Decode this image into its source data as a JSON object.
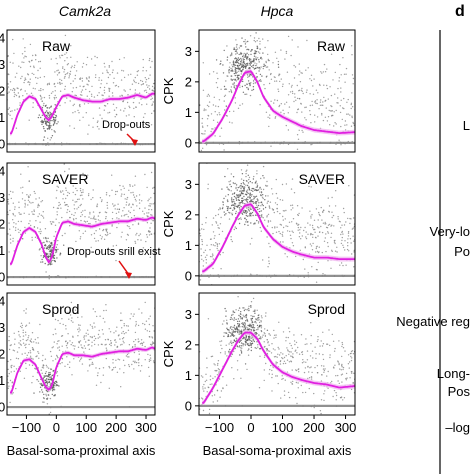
{
  "figure": {
    "panel_letter": "d",
    "right_labels": [
      "L",
      "Very-lo",
      "Po",
      "Negative reg",
      "Long-",
      "Pos",
      "–log"
    ],
    "colors": {
      "fit": "#e020e0",
      "fit_ribbon": "#f2b8f2",
      "points": "#808080",
      "dropout": "#909090",
      "arrow": "#e01010",
      "frame": "#000000"
    }
  },
  "chart_data": [
    {
      "type": "scatter",
      "gene": "Camk2a",
      "method": "Raw",
      "title": "Camk2a",
      "ylabel": "",
      "xlabel": "",
      "xlim": [
        -165,
        330
      ],
      "ylim": [
        -0.3,
        4.3
      ],
      "yticks": [
        0,
        1,
        2,
        3,
        4
      ],
      "xticks": [],
      "annotation": "Drop-outs",
      "curve": {
        "x": [
          -150,
          -130,
          -110,
          -90,
          -70,
          -50,
          -35,
          -25,
          -15,
          0,
          20,
          40,
          60,
          90,
          120,
          150,
          180,
          210,
          240,
          270,
          300,
          320,
          330
        ],
        "y": [
          0.4,
          1.1,
          1.6,
          1.8,
          1.7,
          1.3,
          1.0,
          0.9,
          1.05,
          1.4,
          1.8,
          1.85,
          1.75,
          1.65,
          1.6,
          1.6,
          1.7,
          1.7,
          1.75,
          1.85,
          1.75,
          1.9,
          1.9
        ]
      },
      "scatter_profile": {
        "base": [
          2.0,
          1.9,
          2.5,
          2.6,
          2.4,
          2.0,
          1.5,
          1.0,
          1.5,
          2.2,
          2.6,
          2.5,
          2.2,
          2.0,
          1.9,
          1.9,
          2.0,
          2.0,
          2.0,
          2.1,
          2.0,
          2.1,
          2.1
        ],
        "spread": 1.2
      },
      "dropout_fraction": 0.3
    },
    {
      "type": "scatter",
      "gene": "Hpca",
      "method": "Raw",
      "title": "Hpca",
      "ylabel": "CPK",
      "xlabel": "",
      "xlim": [
        -165,
        330
      ],
      "ylim": [
        -0.3,
        3.7
      ],
      "yticks": [
        0,
        1,
        2,
        3
      ],
      "xticks": [],
      "annotation": "",
      "curve": {
        "x": [
          -150,
          -120,
          -90,
          -60,
          -40,
          -20,
          0,
          20,
          40,
          70,
          100,
          130,
          160,
          200,
          240,
          280,
          330
        ],
        "y": [
          0.05,
          0.3,
          0.8,
          1.4,
          1.9,
          2.3,
          2.35,
          2.0,
          1.5,
          1.05,
          0.85,
          0.7,
          0.55,
          0.42,
          0.37,
          0.32,
          0.35
        ]
      },
      "scatter_profile": {
        "base": [
          0.6,
          0.8,
          1.4,
          2.0,
          2.4,
          2.7,
          2.8,
          2.6,
          2.2,
          1.8,
          1.6,
          1.5,
          1.4,
          1.3,
          1.3,
          1.3,
          1.3
        ],
        "spread": 1.3
      },
      "dropout_fraction": 0.25
    },
    {
      "type": "scatter",
      "gene": "Camk2a",
      "method": "SAVER",
      "title": "",
      "ylabel": "",
      "xlabel": "",
      "xlim": [
        -165,
        330
      ],
      "ylim": [
        -0.3,
        4.3
      ],
      "yticks": [
        0,
        1,
        2,
        3,
        4
      ],
      "xticks": [],
      "annotation": "Drop-outs srill exist",
      "curve": {
        "x": [
          -150,
          -130,
          -110,
          -90,
          -70,
          -50,
          -35,
          -25,
          -15,
          0,
          20,
          40,
          60,
          90,
          120,
          150,
          180,
          210,
          240,
          270,
          300,
          320,
          330
        ],
        "y": [
          0.5,
          1.2,
          1.7,
          1.85,
          1.7,
          1.25,
          0.75,
          0.55,
          0.75,
          1.5,
          2.05,
          2.1,
          2.0,
          1.95,
          1.9,
          2.0,
          2.05,
          2.1,
          2.1,
          2.2,
          2.15,
          2.25,
          2.2
        ]
      },
      "scatter_profile": {
        "base": [
          2.2,
          2.2,
          2.6,
          2.6,
          2.4,
          2.0,
          1.4,
          0.8,
          1.4,
          2.3,
          2.7,
          2.7,
          2.5,
          2.4,
          2.3,
          2.4,
          2.4,
          2.4,
          2.4,
          2.5,
          2.4,
          2.5,
          2.5
        ],
        "spread": 1.1
      },
      "dropout_fraction": 0.25
    },
    {
      "type": "scatter",
      "gene": "Hpca",
      "method": "SAVER",
      "title": "",
      "ylabel": "CPK",
      "xlabel": "",
      "xlim": [
        -165,
        330
      ],
      "ylim": [
        -0.3,
        3.7
      ],
      "yticks": [
        0,
        1,
        2,
        3
      ],
      "xticks": [],
      "annotation": "",
      "curve": {
        "x": [
          -150,
          -120,
          -90,
          -60,
          -40,
          -20,
          0,
          20,
          40,
          70,
          100,
          130,
          160,
          200,
          240,
          280,
          330
        ],
        "y": [
          0.15,
          0.4,
          0.95,
          1.6,
          2.0,
          2.3,
          2.35,
          2.05,
          1.6,
          1.2,
          0.95,
          0.8,
          0.7,
          0.6,
          0.6,
          0.55,
          0.55
        ]
      },
      "scatter_profile": {
        "base": [
          0.8,
          1.0,
          1.5,
          2.1,
          2.5,
          2.8,
          2.9,
          2.6,
          2.3,
          1.9,
          1.7,
          1.6,
          1.5,
          1.4,
          1.4,
          1.4,
          1.4
        ],
        "spread": 1.2
      },
      "dropout_fraction": 0.22
    },
    {
      "type": "scatter",
      "gene": "Camk2a",
      "method": "Sprod",
      "title": "",
      "ylabel": "",
      "xlabel": "Basal-soma-proximal axis",
      "xlim": [
        -165,
        330
      ],
      "ylim": [
        -0.3,
        4.3
      ],
      "yticks": [
        0,
        1,
        2,
        3,
        4
      ],
      "xticks": [
        -100,
        0,
        100,
        200,
        300
      ],
      "annotation": "",
      "curve": {
        "x": [
          -150,
          -130,
          -110,
          -90,
          -70,
          -50,
          -35,
          -25,
          -15,
          0,
          20,
          40,
          60,
          90,
          120,
          150,
          180,
          210,
          240,
          270,
          300,
          320,
          330
        ],
        "y": [
          0.55,
          1.3,
          1.75,
          1.8,
          1.6,
          1.1,
          0.75,
          0.65,
          0.8,
          1.5,
          2.0,
          2.05,
          1.95,
          1.95,
          1.9,
          2.0,
          2.05,
          2.1,
          2.1,
          2.2,
          2.15,
          2.25,
          2.2
        ]
      },
      "scatter_profile": {
        "base": [
          1.6,
          1.9,
          2.3,
          2.3,
          2.1,
          1.6,
          1.0,
          0.7,
          1.2,
          2.0,
          2.4,
          2.4,
          2.3,
          2.2,
          2.2,
          2.3,
          2.3,
          2.3,
          2.3,
          2.4,
          2.3,
          2.4,
          2.4
        ],
        "spread": 1.2
      },
      "dropout_fraction": 0.02
    },
    {
      "type": "scatter",
      "gene": "Hpca",
      "method": "Sprod",
      "title": "",
      "ylabel": "CPK",
      "xlabel": "Basal-soma-proximal axis",
      "xlim": [
        -165,
        330
      ],
      "ylim": [
        -0.3,
        3.7
      ],
      "yticks": [
        0,
        1,
        2,
        3
      ],
      "xticks": [
        -100,
        0,
        100,
        200,
        300
      ],
      "annotation": "",
      "curve": {
        "x": [
          -150,
          -120,
          -90,
          -60,
          -40,
          -20,
          0,
          20,
          40,
          70,
          100,
          130,
          160,
          200,
          240,
          280,
          330
        ],
        "y": [
          0.1,
          0.6,
          1.2,
          1.8,
          2.15,
          2.4,
          2.4,
          2.2,
          1.8,
          1.35,
          1.1,
          0.95,
          0.85,
          0.75,
          0.7,
          0.6,
          0.65
        ]
      },
      "scatter_profile": {
        "base": [
          0.5,
          0.9,
          1.5,
          2.1,
          2.5,
          2.6,
          2.7,
          2.5,
          2.2,
          1.8,
          1.5,
          1.4,
          1.3,
          1.2,
          1.1,
          1.1,
          1.1
        ],
        "spread": 1.1
      },
      "dropout_fraction": 0.03
    }
  ]
}
